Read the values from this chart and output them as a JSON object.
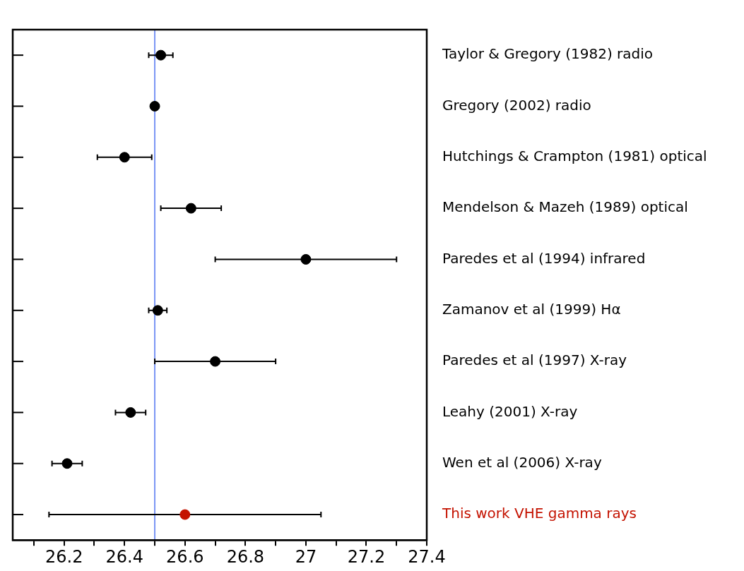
{
  "chart_data": {
    "type": "scatter",
    "orientation": "horizontal",
    "categories": [
      "Taylor & Gregory (1982) radio",
      "Gregory (2002) radio",
      "Hutchings & Crampton (1981) optical",
      "Mendelson & Mazeh (1989) optical",
      "Paredes et al (1994) infrared",
      "Zamanov et al (1999) Hα",
      "Paredes et al (1997) X-ray",
      "Leahy (2001) X-ray",
      "Wen et al (2006) X-ray",
      "This work VHE gamma rays"
    ],
    "values": [
      26.52,
      26.5,
      26.4,
      26.62,
      27.0,
      26.51,
      26.7,
      26.42,
      26.21,
      26.6
    ],
    "errors": [
      0.04,
      null,
      0.09,
      0.1,
      0.3,
      0.03,
      0.2,
      0.05,
      0.05,
      0.45
    ],
    "colors": [
      "#000000",
      "#000000",
      "#000000",
      "#000000",
      "#000000",
      "#000000",
      "#000000",
      "#000000",
      "#000000",
      "#c41200"
    ],
    "xlim": [
      26.03,
      27.4
    ],
    "xticks": [
      {
        "value": 26.1,
        "label": null
      },
      26.2,
      {
        "value": 26.3,
        "label": null
      },
      26.4,
      {
        "value": 26.5,
        "label": null
      },
      26.6,
      {
        "value": 26.7,
        "label": null
      },
      26.8,
      {
        "value": 26.9,
        "label": null
      },
      27,
      {
        "value": 27.1,
        "label": null
      },
      27.2,
      {
        "value": 27.3,
        "label": null
      },
      27.4
    ],
    "ref_lines": [
      {
        "axis": "x",
        "value": 26.5,
        "color": "#7b96f5"
      }
    ],
    "marker": "circle",
    "grid": false,
    "legend": false
  }
}
